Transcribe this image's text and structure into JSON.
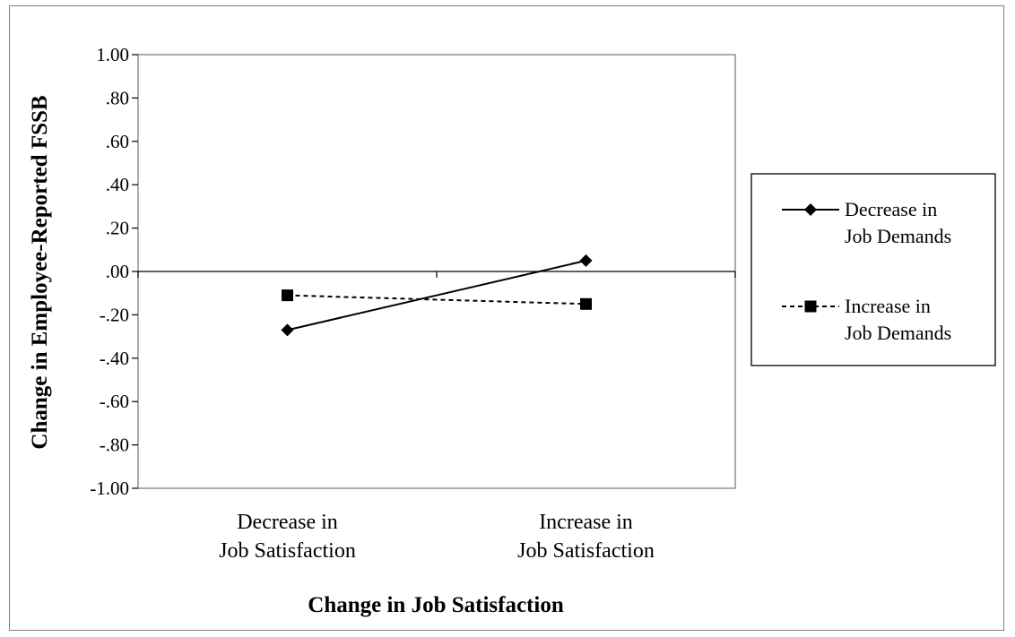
{
  "chart_data": {
    "type": "line",
    "title": "",
    "xlabel": "Change in Job Satisfaction",
    "ylabel": "Change in Employee-Reported FSSB",
    "categories": [
      [
        "Decrease in",
        "Job Satisfaction"
      ],
      [
        "Increase in",
        "Job Satisfaction"
      ]
    ],
    "ylim": [
      -1.0,
      1.0
    ],
    "yticks": [
      1.0,
      0.8,
      0.6,
      0.4,
      0.2,
      0.0,
      -0.2,
      -0.4,
      -0.6,
      -0.8,
      -1.0
    ],
    "ytick_labels": [
      "1.00",
      ".80",
      ".60",
      ".40",
      ".20",
      ".00",
      "-.20",
      "-.40",
      "-.60",
      "-.80",
      "-1.00"
    ],
    "grid": false,
    "legend_position": "right",
    "series": [
      {
        "name": [
          "Decrease in",
          "Job Demands"
        ],
        "values": [
          -0.27,
          0.05
        ],
        "marker": "diamond",
        "line_style": "solid",
        "color": "#000000"
      },
      {
        "name": [
          "Increase in",
          "Job Demands"
        ],
        "values": [
          -0.11,
          -0.15
        ],
        "marker": "square",
        "line_style": "dashed",
        "color": "#000000"
      }
    ]
  }
}
